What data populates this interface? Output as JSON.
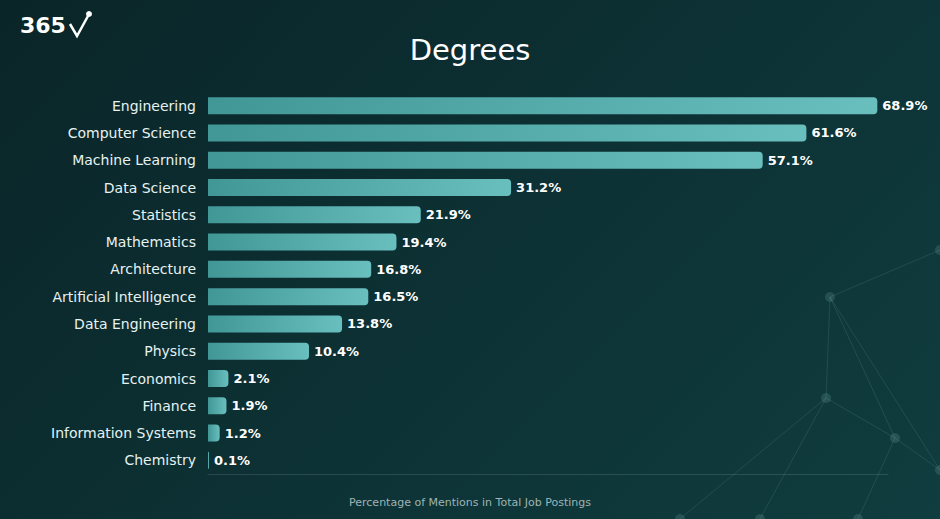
{
  "chart_data": {
    "type": "bar",
    "title": "Degrees",
    "logo": "365",
    "footnote": "Percentage of Mentions in Total Job Postings",
    "orientation": "horizontal",
    "categories": [
      "Engineering",
      "Computer Science",
      "Machine Learning",
      "Data Science",
      "Statistics",
      "Mathematics",
      "Architecture",
      "Artificial Intelligence",
      "Data Engineering",
      "Physics",
      "Economics",
      "Finance",
      "Information Systems",
      "Chemistry"
    ],
    "values": [
      68.9,
      61.6,
      57.1,
      31.2,
      21.9,
      19.4,
      16.8,
      16.5,
      13.8,
      10.4,
      2.1,
      1.9,
      1.2,
      0.1
    ],
    "value_labels": [
      "68.9%",
      "61.6%",
      "57.1%",
      "31.2%",
      "21.9%",
      "19.4%",
      "16.8%",
      "16.5%",
      "13.8%",
      "10.4%",
      "2.1%",
      "1.9%",
      "1.2%",
      "0.1%"
    ],
    "color": "#4fb3b3",
    "xlim": [
      0,
      70
    ],
    "grid": false,
    "data_labels": true,
    "tick_labels": "y"
  }
}
